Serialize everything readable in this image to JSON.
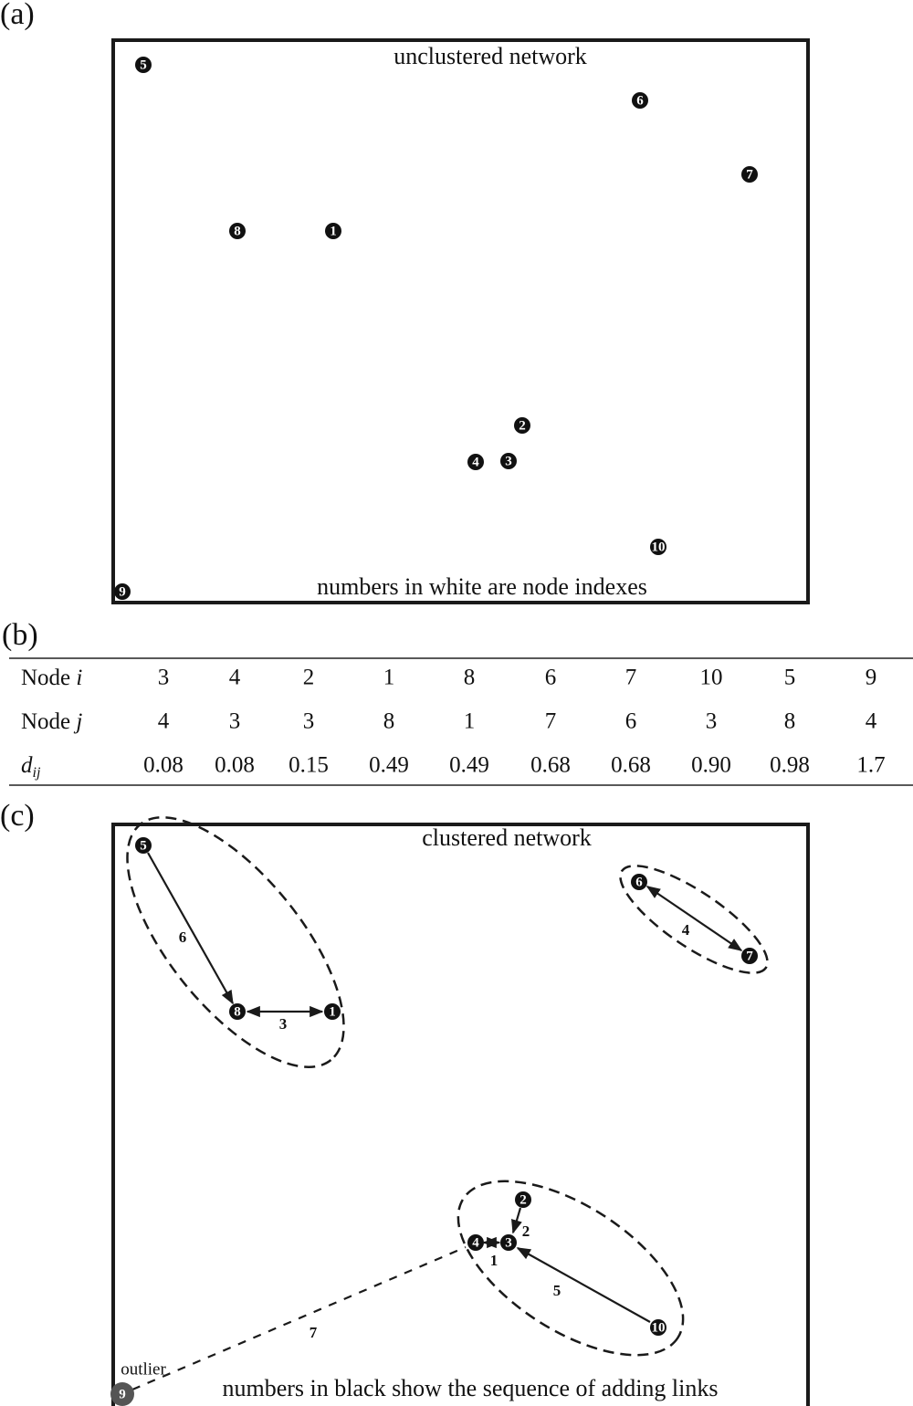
{
  "panel_a": {
    "label": "(a)",
    "title": "unclustered network",
    "note": "numbers in white are node indexes",
    "nodes": [
      "1",
      "2",
      "3",
      "4",
      "5",
      "6",
      "7",
      "8",
      "9",
      "10"
    ]
  },
  "panel_b": {
    "label": "(b)",
    "table": {
      "rows": [
        {
          "label": "Node",
          "var": "i",
          "cells": [
            "3",
            "4",
            "2",
            "1",
            "8",
            "6",
            "7",
            "10",
            "5",
            "9"
          ]
        },
        {
          "label": "Node",
          "var": "j",
          "cells": [
            "4",
            "3",
            "3",
            "8",
            "1",
            "7",
            "6",
            "3",
            "8",
            "4"
          ]
        },
        {
          "var": "d",
          "sub": "ij",
          "cells": [
            "0.08",
            "0.08",
            "0.15",
            "0.49",
            "0.49",
            "0.68",
            "0.68",
            "0.90",
            "0.98",
            "1.7"
          ]
        }
      ]
    }
  },
  "panel_c": {
    "label": "(c)",
    "title": "clustered network",
    "note": "numbers in black show the sequence of adding links",
    "outlier": "outlier",
    "links": [
      "1",
      "2",
      "3",
      "4",
      "5",
      "6",
      "7"
    ]
  }
}
